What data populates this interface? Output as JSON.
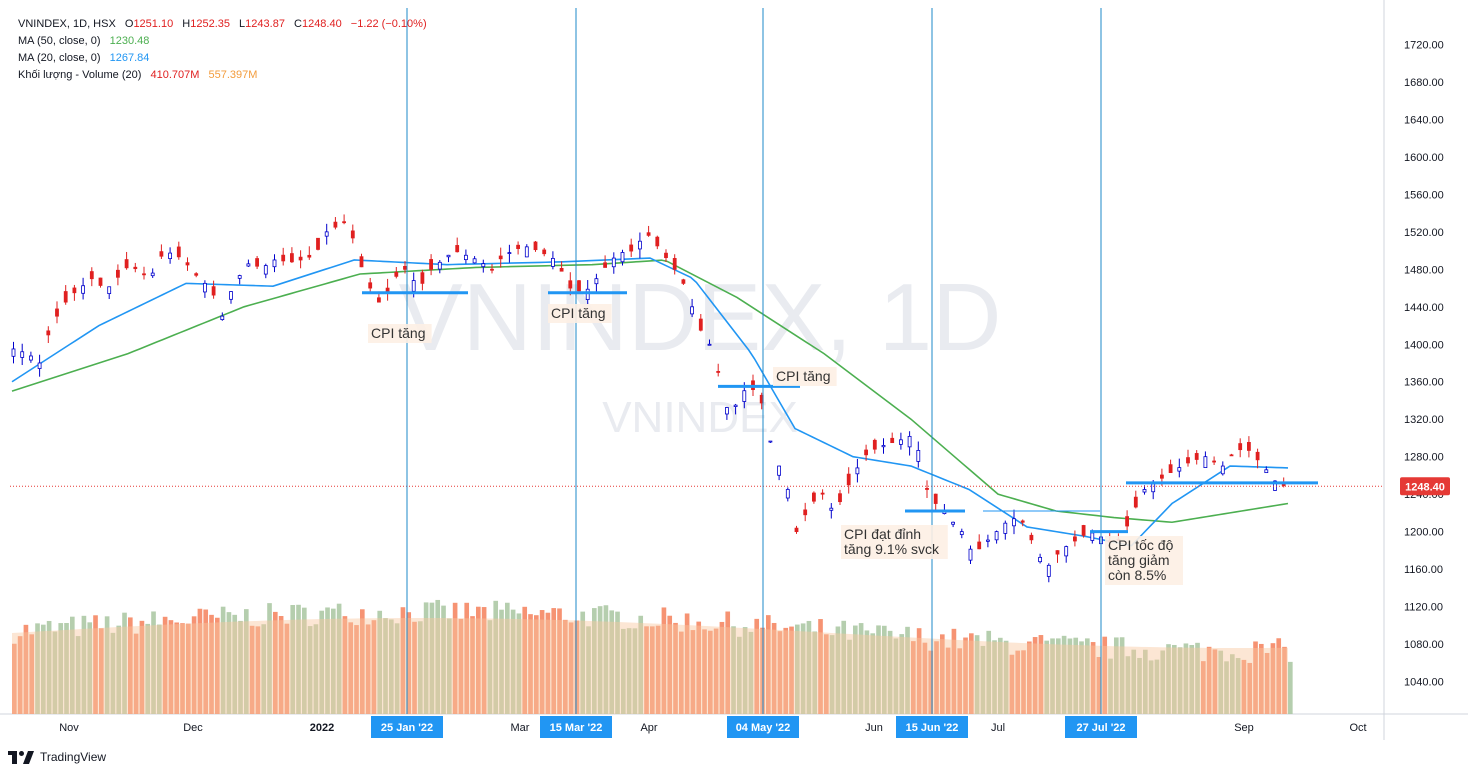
{
  "legend": {
    "symbol_line": "VNINDEX, 1D, HSX",
    "ohlc": {
      "o_label": "O",
      "o": "1251.10",
      "h_label": "H",
      "h": "1252.35",
      "l_label": "L",
      "l": "1243.87",
      "c_label": "C",
      "c": "1248.40",
      "change": "−1.22 (−0.10%)"
    },
    "ma50_label": "MA (50, close, 0)",
    "ma50_value": "1230.48",
    "ma20_label": "MA (20, close, 0)",
    "ma20_value": "1267.84",
    "vol_label": "Khối lượng - Volume (20)",
    "vol_value": "410.707M",
    "vol_ma_value": "557.397M"
  },
  "watermark": {
    "big": "VNINDEX, 1D",
    "small": "VNINDEX"
  },
  "branding": "TradingView",
  "colors": {
    "up": "#0000cc",
    "down": "#e02020",
    "ma50": "#4caf50",
    "ma20": "#2196f3",
    "vline": "#1e88c8",
    "vol_down": "#f4805a",
    "vol_up": "#a8c6a0",
    "vol_ma": "#f8c8a0",
    "price_label_bg": "#e53935",
    "axis_badge_bg": "#2196f3"
  },
  "chart_data": {
    "type": "candlestick",
    "title": "VNINDEX, 1D, HSX",
    "ylim": [
      1010,
      1750
    ],
    "y_ticks": [
      "1040.00",
      "1080.00",
      "1120.00",
      "1160.00",
      "1200.00",
      "1240.00",
      "1280.00",
      "1320.00",
      "1360.00",
      "1400.00",
      "1440.00",
      "1480.00",
      "1520.00",
      "1560.00",
      "1600.00",
      "1640.00",
      "1680.00",
      "1720.00"
    ],
    "x_labels": [
      "Nov",
      "Dec",
      "2022",
      "Mar",
      "Apr",
      "Jun",
      "Jul",
      "Sep",
      "Oct"
    ],
    "current_price": "1248.40",
    "current_price_value": 1248.4,
    "event_dates": [
      "25 Jan '22",
      "15 Mar '22",
      "04 May '22",
      "15 Jun '22",
      "27 Jul '22"
    ],
    "annotations": [
      {
        "text": "CPI tăng",
        "date": "25 Jan '22",
        "level": 1455
      },
      {
        "text": "CPI tăng",
        "date": "15 Mar '22",
        "level": 1455
      },
      {
        "text": "CPI tăng",
        "date": "04 May '22",
        "level": 1355
      },
      {
        "text": "CPI đạt đỉnh\ntăng 9.1% svck",
        "date": "15 Jun '22",
        "level": 1222
      },
      {
        "text": "CPI tốc độ\ntăng giảm\ncòn 8.5%",
        "date": "27 Jul '22",
        "level": 1200
      }
    ],
    "close_path": [
      [
        0,
        1395
      ],
      [
        5,
        1390
      ],
      [
        9,
        1380
      ],
      [
        13,
        1420
      ],
      [
        19,
        1450
      ],
      [
        27,
        1470
      ],
      [
        32,
        1458
      ],
      [
        40,
        1485
      ],
      [
        47,
        1470
      ],
      [
        52,
        1500
      ],
      [
        58,
        1492
      ],
      [
        64,
        1470
      ],
      [
        68,
        1460
      ],
      [
        72,
        1430
      ],
      [
        76,
        1465
      ],
      [
        82,
        1490
      ],
      [
        85,
        1480
      ],
      [
        90,
        1490
      ],
      [
        96,
        1488
      ],
      [
        99,
        1490
      ],
      [
        104,
        1495
      ],
      [
        108,
        1520
      ],
      [
        114,
        1530
      ],
      [
        118,
        1508
      ],
      [
        121,
        1470
      ],
      [
        125,
        1450
      ],
      [
        127,
        1440
      ],
      [
        131,
        1470
      ],
      [
        135,
        1480
      ],
      [
        140,
        1460
      ],
      [
        144,
        1480
      ],
      [
        152,
        1500
      ],
      [
        160,
        1490
      ],
      [
        165,
        1480
      ],
      [
        169,
        1495
      ],
      [
        176,
        1505
      ],
      [
        181,
        1500
      ],
      [
        187,
        1490
      ],
      [
        192,
        1460
      ],
      [
        197,
        1455
      ],
      [
        201,
        1470
      ],
      [
        206,
        1490
      ],
      [
        210,
        1498
      ],
      [
        214,
        1500
      ],
      [
        218,
        1520
      ],
      [
        222,
        1505
      ],
      [
        228,
        1480
      ],
      [
        232,
        1460
      ],
      [
        236,
        1420
      ],
      [
        240,
        1400
      ],
      [
        243,
        1370
      ],
      [
        247,
        1320
      ],
      [
        251,
        1350
      ],
      [
        256,
        1352
      ],
      [
        259,
        1330
      ],
      [
        262,
        1280
      ],
      [
        266,
        1260
      ],
      [
        270,
        1200
      ],
      [
        275,
        1230
      ],
      [
        279,
        1240
      ],
      [
        283,
        1220
      ],
      [
        288,
        1250
      ],
      [
        293,
        1280
      ],
      [
        298,
        1290
      ],
      [
        303,
        1295
      ],
      [
        308,
        1300
      ],
      [
        311,
        1305
      ],
      [
        314,
        1250
      ],
      [
        318,
        1230
      ],
      [
        322,
        1220
      ],
      [
        324,
        1210
      ],
      [
        327,
        1200
      ],
      [
        331,
        1175
      ],
      [
        334,
        1185
      ],
      [
        339,
        1200
      ],
      [
        344,
        1215
      ],
      [
        348,
        1210
      ],
      [
        352,
        1185
      ],
      [
        356,
        1160
      ],
      [
        361,
        1180
      ],
      [
        366,
        1190
      ],
      [
        371,
        1200
      ],
      [
        378,
        1190
      ],
      [
        382,
        1192
      ],
      [
        386,
        1220
      ],
      [
        390,
        1245
      ],
      [
        395,
        1255
      ],
      [
        400,
        1265
      ],
      [
        406,
        1275
      ],
      [
        411,
        1280
      ],
      [
        417,
        1270
      ],
      [
        421,
        1285
      ],
      [
        425,
        1290
      ],
      [
        431,
        1270
      ],
      [
        436,
        1250
      ],
      [
        440,
        1248.4
      ]
    ],
    "ma20_path": [
      [
        0,
        1360
      ],
      [
        30,
        1420
      ],
      [
        60,
        1465
      ],
      [
        90,
        1462
      ],
      [
        118,
        1490
      ],
      [
        150,
        1485
      ],
      [
        190,
        1488
      ],
      [
        220,
        1492
      ],
      [
        235,
        1470
      ],
      [
        255,
        1390
      ],
      [
        270,
        1310
      ],
      [
        290,
        1280
      ],
      [
        310,
        1270
      ],
      [
        330,
        1245
      ],
      [
        350,
        1205
      ],
      [
        370,
        1195
      ],
      [
        386,
        1185
      ],
      [
        400,
        1230
      ],
      [
        420,
        1270
      ],
      [
        440,
        1268
      ]
    ],
    "ma50_path": [
      [
        0,
        1350
      ],
      [
        40,
        1390
      ],
      [
        80,
        1440
      ],
      [
        120,
        1475
      ],
      [
        160,
        1482
      ],
      [
        200,
        1485
      ],
      [
        225,
        1490
      ],
      [
        250,
        1450
      ],
      [
        280,
        1390
      ],
      [
        310,
        1320
      ],
      [
        340,
        1240
      ],
      [
        360,
        1222
      ],
      [
        380,
        1215
      ],
      [
        400,
        1210
      ],
      [
        420,
        1220
      ],
      [
        440,
        1230
      ]
    ],
    "volume_note": "Khối lượng - Volume (20)"
  }
}
